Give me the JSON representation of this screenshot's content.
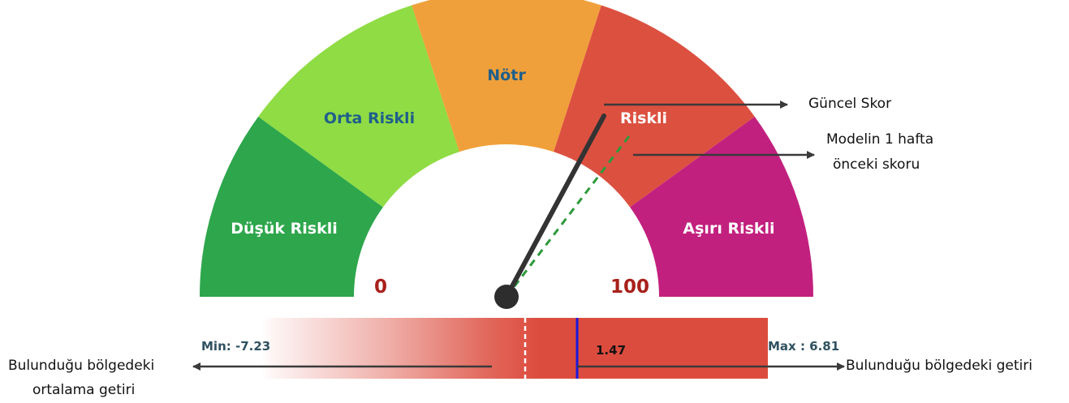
{
  "gauge": {
    "segments": [
      {
        "label": "Düşük Riskli",
        "color": "#2ea64c",
        "text_color": "#ffffff"
      },
      {
        "label": "Orta Riskli",
        "color": "#8fdc44",
        "text_color": "#1f5f8b"
      },
      {
        "label": "Nötr",
        "color": "#f0a03a",
        "text_color": "#1f5f8b"
      },
      {
        "label": "Riskli",
        "color": "#dc5040",
        "text_color": "#ffffff"
      },
      {
        "label": "Aşırı Riskli",
        "color": "#c2207e",
        "text_color": "#ffffff"
      }
    ],
    "scale_min": "0",
    "scale_max": "100"
  },
  "annotations": {
    "current_score": "Güncel Skor",
    "prev_score_line1": "Modelin 1 hafta",
    "prev_score_line2": "önceki skoru",
    "avg_return_line1": "Bulunduğu bölgedeki",
    "avg_return_line2": "ortalama getiri",
    "zone_return": "Bulunduğu bölgedeki getiri"
  },
  "return_bar": {
    "min_label": "Min: -7.23",
    "max_label": "Max : 6.81",
    "current_value": "1.47",
    "bar_color": "#dc4c3e",
    "marker_color": "#1a1adc"
  }
}
